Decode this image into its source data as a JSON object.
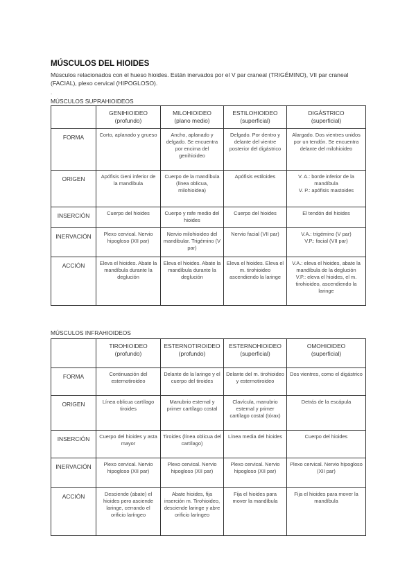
{
  "title": "MÚSCULOS DEL HIOIDES",
  "intro": "Músculos relacionados con el hueso hioides. Están inervados por el V par craneal (TRIGÉMINO), VII par craneal (FACIAL), plexo cervical (HIPOGLOSO).",
  "separator": ".",
  "tables": [
    {
      "section_label": "MÚSCULOS SUPRAHIOIDEOS",
      "headers": [
        {
          "name": "GENIHIOIDEO",
          "sub": "(profundo)"
        },
        {
          "name": "MILOHIOIDEO",
          "sub": "(plano medio)"
        },
        {
          "name": "ESTILOHIOIDEO",
          "sub": "(superficial)"
        },
        {
          "name": "DIGÁSTRICO",
          "sub": "(superficial)"
        }
      ],
      "rows": [
        {
          "label": "FORMA",
          "cells": [
            "Corto, aplanado y grueso",
            "Ancho, aplanado y delgado. Se encuentra por encima del genihioideo",
            "Delgado. Por dentro y delante del vientre posterior del digástrico",
            "Alargado. Dos vientres unidos por un tendón. Se encuentra delante del milohioideo"
          ]
        },
        {
          "label": "ORIGEN",
          "cells": [
            "Apófisis Geni inferior de la mandíbula",
            "Cuerpo de la mandíbula (línea oblicua, milohioidea)",
            "Apófisis estiloides",
            "V. A.: borde inferior de la mandíbula\nV. P.: apófisis mastoides"
          ]
        },
        {
          "label": "INSERCIÓN",
          "cells": [
            "Cuerpo del hioides",
            "Cuerpo y rafe medio del hioides",
            "Cuerpo del hioides",
            "El tendón del hioides"
          ]
        },
        {
          "label": "INERVACIÓN",
          "cells": [
            "Plexo cervical. Nervio hipogloso (XII par)",
            "Nervio milohioideo del mandibular. Trigémino (V par)",
            "Nervio facial (VII par)",
            "V.A.: trigémino (V par)\nV.P.: facial (VII par)"
          ]
        },
        {
          "label": "ACCIÓN",
          "cells": [
            "Eleva el hioides. Abate la mandíbula durante la deglución",
            "Eleva el hioides. Abate la mandíbula durante la deglución",
            "Eleva el hioides. Eleva el m. tirohioideo ascendiendo la laringe",
            "V.A.: eleva el hioides, abate la mandíbula de la deglución\nV.P.: eleva el hioides, el m. tirohioideo, ascendiendo la laringe"
          ]
        }
      ]
    },
    {
      "section_label": "MÚSCULOS INFRAHIOIDEOS",
      "headers": [
        {
          "name": "TIROHIOIDEO",
          "sub": "(profundo)"
        },
        {
          "name": "ESTERNOTIROIDEO",
          "sub": "(profundo)"
        },
        {
          "name": "ESTERNOHIOIDEO",
          "sub": "(superficial)"
        },
        {
          "name": "OMOHIOIDEO",
          "sub": "(superficial)"
        }
      ],
      "rows": [
        {
          "label": "FORMA",
          "cells": [
            "Continuación del esternotiroideo",
            "Delante de la laringe y el cuerpo del tiroides",
            "Delante del m. tirohioideo y esternotiroideo",
            "Dos vientres, como el digástrico"
          ]
        },
        {
          "label": "ORIGEN",
          "cells": [
            "Línea oblicua cartílago tiroides",
            "Manubrio esternal y primer cartílago costal",
            "Clavícula, manubrio esternal y primer cartílago costal (tórax)",
            "Detrás de la escápula"
          ]
        },
        {
          "label": "INSERCIÓN",
          "cells": [
            "Cuerpo del hioides y asta mayor",
            "Tiroides (línea oblicua del cartílago)",
            "Línea media del hioides",
            "Cuerpo del hioides"
          ]
        },
        {
          "label": "INERVACIÓN",
          "cells": [
            "Plexo cervical. Nervio hipogloso (XII par)",
            "Plexo cervical. Nervio hipogloso (XII par)",
            "Plexo cervical. Nervio hipogloso (XII par)",
            "Plexo cervical. Nervio hipogloso (XII par)"
          ]
        },
        {
          "label": "ACCIÓN",
          "cells": [
            "Desciende (abate) el hioides pero asciende laringe, cerrando el orificio laríngeo",
            "Abate hioides, fija inserción m. Tirohioideo, desciende laringe y abre orificio laríngeo",
            "Fija el hioides para mover la mandíbula",
            "Fija el hioides para mover la mandíbula"
          ]
        }
      ]
    }
  ]
}
